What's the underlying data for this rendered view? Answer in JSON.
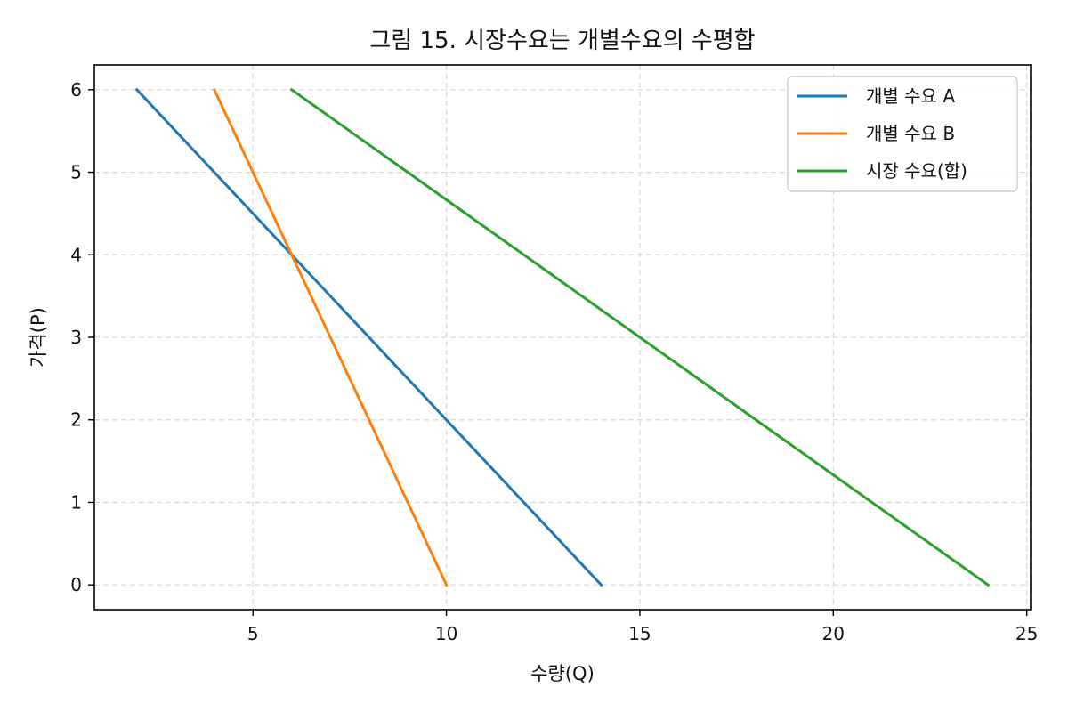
{
  "chart_data": {
    "type": "line",
    "title": "그림 15. 시장수요는 개별수요의 수평합",
    "xlabel": "수량(Q)",
    "ylabel": "가격(P)",
    "xlim": [
      0.9,
      25.1
    ],
    "ylim": [
      -0.3,
      6.3
    ],
    "xticks": [
      5,
      10,
      15,
      20,
      25
    ],
    "yticks": [
      0,
      1,
      2,
      3,
      4,
      5,
      6
    ],
    "grid": true,
    "legend_position": "top-right",
    "series": [
      {
        "name": "개별 수요 A",
        "color": "#1f77b4",
        "points": [
          [
            2,
            6
          ],
          [
            14,
            0
          ]
        ]
      },
      {
        "name": "개별 수요 B",
        "color": "#ff7f0e",
        "points": [
          [
            4,
            6
          ],
          [
            10,
            0
          ]
        ]
      },
      {
        "name": "시장 수요(합)",
        "color": "#2ca02c",
        "points": [
          [
            6,
            6
          ],
          [
            24,
            0
          ]
        ]
      }
    ]
  }
}
